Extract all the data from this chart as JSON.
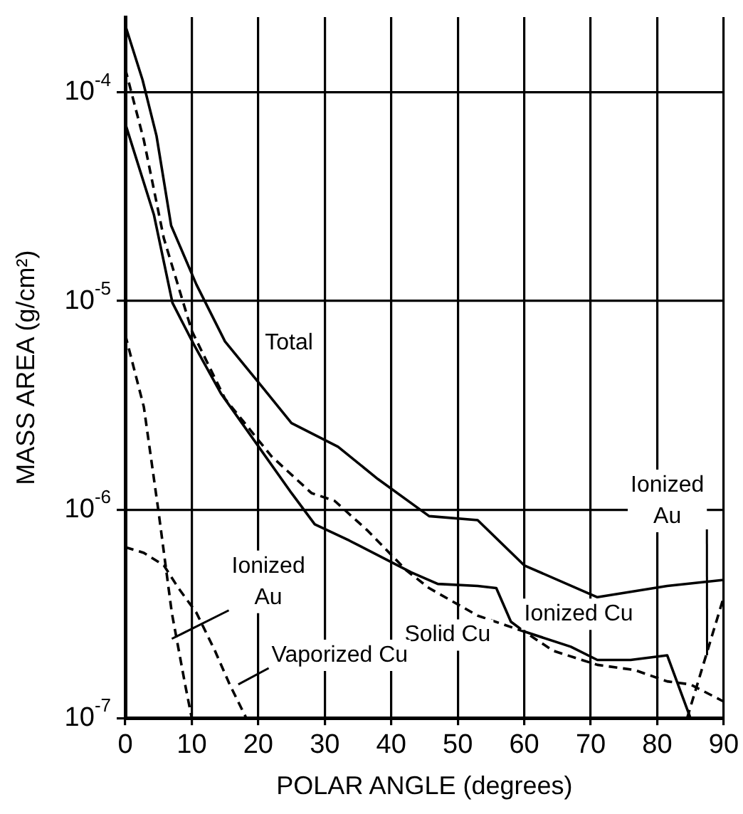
{
  "chart_data": {
    "type": "line",
    "xlabel": "POLAR ANGLE (degrees)",
    "ylabel": "MASS AREA (g/cm²)",
    "log": "y",
    "grid": true,
    "legend": false,
    "marker": "none",
    "xlim": [
      0,
      90
    ],
    "xticks": [
      0,
      10,
      20,
      30,
      40,
      50,
      60,
      70,
      80,
      90
    ],
    "ylim": [
      1e-07,
      0.00023
    ],
    "yticks": [
      {
        "value": 1e-07,
        "label": "10$^{-7}$"
      },
      {
        "value": 1e-06,
        "label": "10$^{-6}$"
      },
      {
        "value": 1e-05,
        "label": "10$^{-5}$"
      },
      {
        "value": 0.0001,
        "label": "10$^{-4}$"
      }
    ],
    "series": [
      {
        "name": "Total",
        "color": "#000000",
        "line_style": "solid",
        "x": [
          0,
          2.6,
          4.7,
          6.9,
          10.7,
          15,
          20.8,
          25,
          32,
          38,
          45.7,
          53,
          60,
          71,
          81.5,
          90
        ],
        "values": [
          0.00021,
          0.000115,
          6.2e-05,
          2.3e-05,
          1.2e-05,
          6.4e-06,
          3.8e-06,
          2.6e-06,
          2e-06,
          1.4e-06,
          9.3e-07,
          8.9e-07,
          5.4e-07,
          3.8e-07,
          4.3e-07,
          4.6e-07
        ]
      },
      {
        "name": "Solid Cu",
        "color": "#000000",
        "line_style": "dashed",
        "x": [
          0,
          2.8,
          5.8,
          10,
          15,
          22,
          28,
          31.5,
          36.5,
          42.3,
          45.7,
          53,
          60,
          64.4,
          71,
          76.6,
          81.5,
          85,
          90
        ],
        "values": [
          0.00013,
          5.9e-05,
          2e-05,
          7.2e-06,
          3.4e-06,
          1.8e-06,
          1.2e-06,
          1.1e-06,
          7.9e-07,
          5.1e-07,
          4.2e-07,
          3.1e-07,
          2.6e-07,
          2.1e-07,
          1.8e-07,
          1.7e-07,
          1.5e-07,
          1.45e-07,
          1.2e-07
        ]
      },
      {
        "name": "Ionized Cu",
        "color": "#000000",
        "line_style": "solid",
        "x": [
          0,
          4.3,
          7.1,
          10.3,
          14.4,
          25,
          28.5,
          33.7,
          43,
          47,
          53,
          55.8,
          58,
          60,
          67,
          71,
          76,
          81.5,
          85
        ],
        "values": [
          7.1e-05,
          2.6e-05,
          9.8e-06,
          6.2e-06,
          3.6e-06,
          1.2e-06,
          8.5e-07,
          7.1e-07,
          5e-07,
          4.4e-07,
          4.3e-07,
          4.2e-07,
          2.9e-07,
          2.6e-07,
          2.2e-07,
          1.9e-07,
          1.9e-07,
          2e-07,
          1e-07
        ]
      },
      {
        "name": "Vaporized Cu",
        "color": "#000000",
        "line_style": "dashed",
        "x": [
          0,
          2.8,
          5.8,
          8,
          10.7,
          13.5,
          15.7,
          18.2
        ],
        "values": [
          6.6e-07,
          6.2e-07,
          5.4e-07,
          4.2e-07,
          3.2e-07,
          2.1e-07,
          1.45e-07,
          1e-07
        ]
      },
      {
        "name": "Ionized Au",
        "color": "#000000",
        "line_style": "dashed",
        "x": [
          0,
          2.8,
          5,
          7,
          9,
          10
        ],
        "values": [
          6.9e-06,
          3.1e-06,
          9.8e-07,
          3.2e-07,
          1.45e-07,
          1e-07
        ]
      },
      {
        "color": "#000000",
        "line_style": "dashed",
        "x": [
          84.5,
          90
        ],
        "values": [
          1e-07,
          3.8e-07
        ]
      }
    ]
  }
}
